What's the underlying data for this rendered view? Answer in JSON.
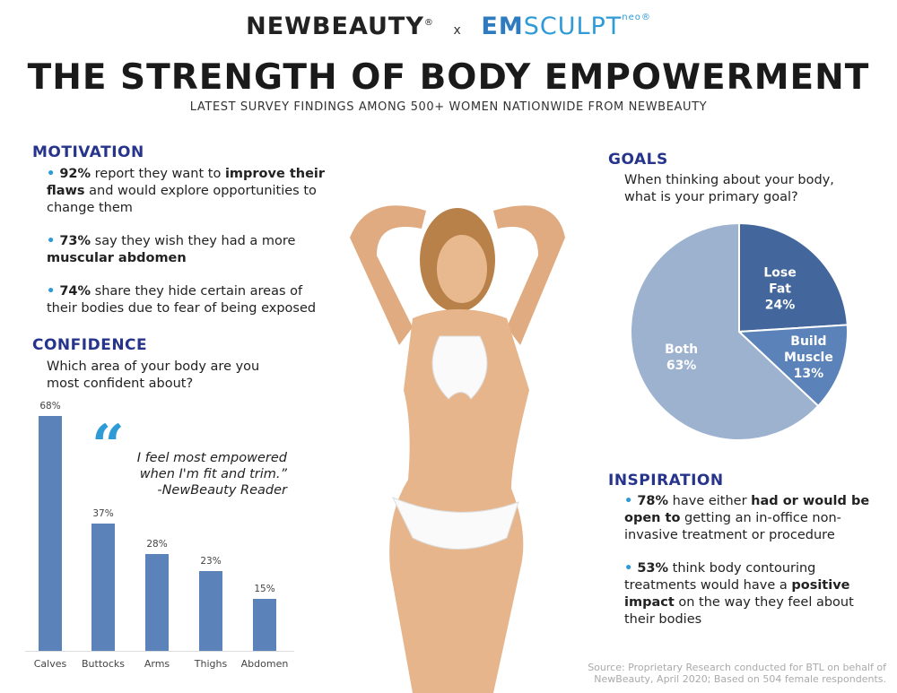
{
  "header": {
    "brand_left": "NEWBEAUTY",
    "brand_left_mark": "®",
    "separator": "x",
    "brand_right_em": "EM",
    "brand_right_sculpt": "SCULPT",
    "brand_right_neo": "neo®",
    "title": "THE STRENGTH OF BODY EMPOWERMENT",
    "subtitle": "LATEST SURVEY FINDINGS AMONG 500+ WOMEN NATIONWIDE FROM NEWBEAUTY"
  },
  "motivation": {
    "heading": "MOTIVATION",
    "items": [
      {
        "stat": "92%",
        "pre": " report they want to ",
        "bold": "improve their flaws",
        "post": " and would explore opportunities to change them"
      },
      {
        "stat": "73%",
        "pre": " say they wish they had a more ",
        "bold": "muscular abdomen",
        "post": ""
      },
      {
        "stat": "74%",
        "pre": " share they hide certain areas of their bodies due to fear of being exposed",
        "bold": "",
        "post": ""
      }
    ]
  },
  "confidence": {
    "heading": "CONFIDENCE",
    "question": "Which area of your body are you most confident about?"
  },
  "quote": {
    "text": "I feel most empowered when I'm fit and trim.”",
    "attribution": "-NewBeauty Reader"
  },
  "goals": {
    "heading": "GOALS",
    "question": "When thinking about your body, what is your primary goal?"
  },
  "inspiration": {
    "heading": "INSPIRATION",
    "items": [
      {
        "stat": "78%",
        "pre": " have either ",
        "bold": "had or would be open to",
        "post": " getting an in-office non-invasive treatment or procedure"
      },
      {
        "stat": "53%",
        "pre": " think body contouring treatments would have a ",
        "bold": "positive impact",
        "post": " on the way they feel about their bodies"
      }
    ]
  },
  "source": "Source: Proprietary Research conducted for BTL on behalf of NewBeauty, April 2020; Based on 504 female respondents.",
  "chart_data": [
    {
      "type": "bar",
      "categories": [
        "Calves",
        "Buttocks",
        "Arms",
        "Thighs",
        "Abdomen"
      ],
      "values": [
        68,
        37,
        28,
        23,
        15
      ],
      "data_labels": [
        "68%",
        "37%",
        "28%",
        "23%",
        "15%"
      ],
      "ylim": [
        0,
        70
      ],
      "grid": false,
      "color": "#5b83b9"
    },
    {
      "type": "pie",
      "slices": [
        {
          "label": "Lose Fat",
          "value": 24,
          "text": "24%",
          "color": "#43679c"
        },
        {
          "label": "Build Muscle",
          "value": 13,
          "text": "13%",
          "color": "#5b83b9"
        },
        {
          "label": "Both",
          "value": 63,
          "text": "63%",
          "color": "#9db2cf"
        }
      ],
      "start": "12 o'clock",
      "direction": "clockwise"
    }
  ]
}
